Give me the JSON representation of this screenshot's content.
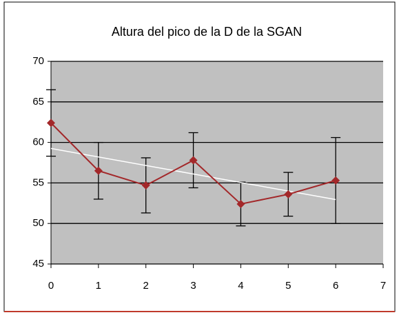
{
  "chart_data": {
    "type": "line",
    "title": "Altura del pico de la D de la SGAN",
    "x": [
      0,
      1,
      2,
      3,
      4,
      5,
      6
    ],
    "series": [
      {
        "color": "#a3282a",
        "values": [
          62.4,
          56.5,
          54.7,
          57.8,
          52.4,
          53.6,
          55.3
        ],
        "errors": [
          4.1,
          3.5,
          3.4,
          3.4,
          2.7,
          2.7,
          5.3
        ]
      }
    ],
    "xlim": [
      0,
      7
    ],
    "xticks": [
      0,
      1,
      2,
      3,
      4,
      5,
      6,
      7
    ],
    "ylim": [
      45,
      70
    ],
    "yticks": [
      45,
      50,
      55,
      60,
      65,
      70
    ],
    "grid": true,
    "trendline": true,
    "trendline_color": "#ffffff",
    "plot_background": "#c0c0c0"
  }
}
